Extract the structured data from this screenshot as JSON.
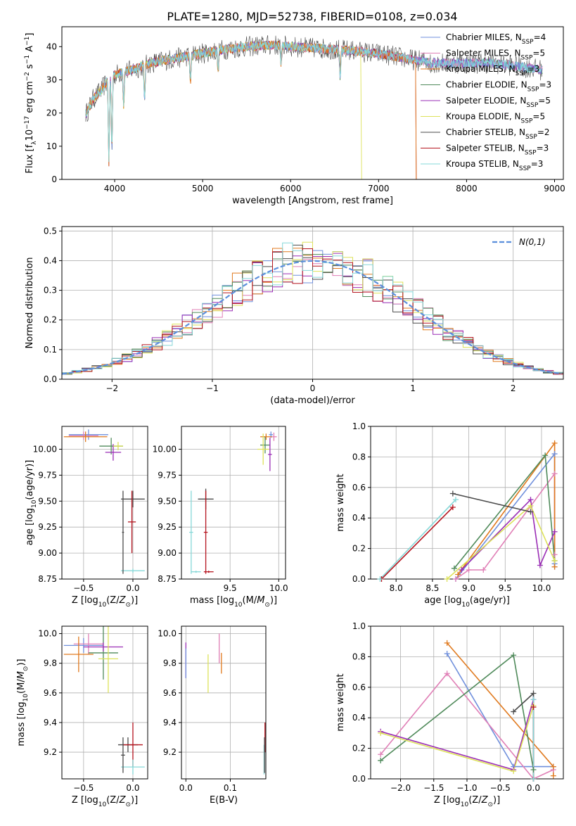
{
  "title": "PLATE=1280, MJD=52738, FIBERID=0108, z=0.034",
  "colors": {
    "chabrier_miles": "#6f8fdc",
    "salpeter_miles": "#e07fb6",
    "kroupa_miles": "#e07a1f",
    "chabrier_elodie": "#4f8a5a",
    "salpeter_elodie": "#9a2db5",
    "kroupa_elodie": "#dde25a",
    "chabrier_stelib": "#4a4a4a",
    "salpeter_stelib": "#b5151f",
    "kroupa_stelib": "#86d8d8",
    "gaussian": "#5b8fdc"
  },
  "chart_data": [
    {
      "id": "spectrum",
      "type": "line",
      "xlabel": "wavelength [Angstrom, rest frame]",
      "ylabel": "Flux [f_λ10^-17 erg cm^-2 s^-1 A^-1]",
      "xlim": [
        3400,
        9100
      ],
      "ylim": [
        0,
        46
      ],
      "xticks": [
        4000,
        5000,
        6000,
        7000,
        8000,
        9000
      ],
      "yticks": [
        0,
        10,
        20,
        30,
        40
      ],
      "grid": false,
      "legend_position": "top-right",
      "legend": [
        {
          "key": "chabrier_miles",
          "label": "Chabrier MILES, N",
          "sub": "SSP",
          "tail": "=4"
        },
        {
          "key": "salpeter_miles",
          "label": "Salpeter MILES, N",
          "sub": "SSP",
          "tail": "=5"
        },
        {
          "key": "kroupa_miles",
          "label": "Kroupa MILES, N",
          "sub": "SSP",
          "tail": "=3"
        },
        {
          "key": "chabrier_elodie",
          "label": "Chabrier ELODIE, N",
          "sub": "SSP",
          "tail": "=3"
        },
        {
          "key": "salpeter_elodie",
          "label": "Salpeter ELODIE, N",
          "sub": "SSP",
          "tail": "=5"
        },
        {
          "key": "kroupa_elodie",
          "label": "Kroupa ELODIE, N",
          "sub": "SSP",
          "tail": "=5"
        },
        {
          "key": "chabrier_stelib",
          "label": "Chabrier STELIB, N",
          "sub": "SSP",
          "tail": "=2"
        },
        {
          "key": "salpeter_stelib",
          "label": "Salpeter STELIB, N",
          "sub": "SSP",
          "tail": "=3"
        },
        {
          "key": "kroupa_stelib",
          "label": "Kroupa STELIB, N",
          "sub": "SSP",
          "tail": "=3"
        }
      ],
      "continuum": [
        [
          3680,
          20
        ],
        [
          3750,
          24
        ],
        [
          3850,
          27
        ],
        [
          3950,
          31
        ],
        [
          4050,
          32
        ],
        [
          4200,
          33
        ],
        [
          4400,
          35
        ],
        [
          4600,
          36
        ],
        [
          4800,
          37
        ],
        [
          5000,
          38
        ],
        [
          5200,
          39
        ],
        [
          5500,
          40
        ],
        [
          5800,
          40.5
        ],
        [
          6000,
          40
        ],
        [
          6300,
          39.5
        ],
        [
          6600,
          39
        ],
        [
          6800,
          38.5
        ],
        [
          7100,
          37.5
        ],
        [
          7400,
          36
        ],
        [
          7700,
          35
        ],
        [
          8000,
          35
        ],
        [
          8300,
          35
        ],
        [
          8600,
          34
        ],
        [
          8850,
          33
        ]
      ],
      "dips": [
        [
          3934,
          25
        ],
        [
          3968,
          22
        ],
        [
          4102,
          10
        ],
        [
          4340,
          10
        ],
        [
          4861,
          8
        ],
        [
          5175,
          6
        ],
        [
          5890,
          5
        ],
        [
          6563,
          8
        ],
        [
          7600,
          2
        ]
      ],
      "model_cutoffs": [
        {
          "key": "kroupa_miles",
          "end": 7420
        },
        {
          "key": "salpeter_stelib",
          "end": 7420
        },
        {
          "key": "kroupa_elodie",
          "end": 6800
        }
      ]
    },
    {
      "id": "residuals",
      "type": "histogram",
      "xlabel": "(data-model)/error",
      "ylabel": "Normed distribution",
      "xlim": [
        -2.5,
        2.5
      ],
      "ylim": [
        0,
        0.515
      ],
      "xticks": [
        -2,
        -1,
        0,
        1,
        2
      ],
      "yticks": [
        0.0,
        0.1,
        0.2,
        0.3,
        0.4,
        0.5
      ],
      "grid": true,
      "bin_width": 0.1,
      "legend_position": "top-right",
      "gaussian_label": "N(0,1)"
    },
    {
      "id": "age_vs_Z",
      "type": "scatter",
      "xlabel": "Z [log10(Z/Z⊙)]",
      "ylabel": "age [log10(age/yr)]",
      "xlim": [
        -0.72,
        0.15
      ],
      "ylim": [
        8.75,
        10.22
      ],
      "xticks": [
        -0.5,
        0.0
      ],
      "yticks": [
        8.75,
        9.0,
        9.25,
        9.5,
        9.75,
        10.0
      ],
      "grid": true,
      "points": [
        {
          "c": "chabrier_miles",
          "x": -0.45,
          "y": 10.14,
          "dx": 0.2,
          "dy": 0.05
        },
        {
          "c": "salpeter_miles",
          "x": -0.5,
          "y": 10.13,
          "dx": 0.15,
          "dy": 0.04
        },
        {
          "c": "kroupa_miles",
          "x": -0.48,
          "y": 10.12,
          "dx": 0.22,
          "dy": 0.05
        },
        {
          "c": "chabrier_elodie",
          "x": -0.22,
          "y": 10.03,
          "dx": 0.12,
          "dy": 0.08
        },
        {
          "c": "salpeter_elodie",
          "x": -0.2,
          "y": 9.97,
          "dx": 0.08,
          "dy": 0.08
        },
        {
          "c": "kroupa_elodie",
          "x": -0.15,
          "y": 10.03,
          "dx": 0.05,
          "dy": 0.04
        },
        {
          "c": "chabrier_stelib",
          "x": 0.0,
          "y": 9.52,
          "dx": 0.12,
          "dy": 0.08
        },
        {
          "c": "salpeter_stelib",
          "x": -0.01,
          "y": 9.3,
          "dx": 0.04,
          "dy": 0.3
        },
        {
          "c": "kroupa_stelib",
          "x": 0.0,
          "y": 8.83,
          "dx": 0.12,
          "dy": 0.02
        },
        {
          "c": "chabrier_stelib",
          "x": -0.1,
          "y": 9.2,
          "dx": 0.01,
          "dy": 0.4
        }
      ]
    },
    {
      "id": "age_vs_mass",
      "type": "scatter",
      "xlabel": "mass [log10(M/M⊙)]",
      "ylabel": "",
      "xlim": [
        9.0,
        10.07
      ],
      "ylim": [
        8.75,
        10.22
      ],
      "xticks": [
        9.5,
        10.0
      ],
      "yticks": [
        8.75,
        9.0,
        9.25,
        9.5,
        9.75,
        10.0
      ],
      "grid": true,
      "points": [
        {
          "c": "chabrier_miles",
          "x": 9.92,
          "y": 10.14,
          "dx": 0.02,
          "dy": 0.03
        },
        {
          "c": "salpeter_miles",
          "x": 9.95,
          "y": 10.12,
          "dx": 0.03,
          "dy": 0.04
        },
        {
          "c": "kroupa_miles",
          "x": 9.87,
          "y": 10.12,
          "dx": 0.06,
          "dy": 0.03
        },
        {
          "c": "chabrier_elodie",
          "x": 9.86,
          "y": 10.04,
          "dx": 0.05,
          "dy": 0.08
        },
        {
          "c": "salpeter_elodie",
          "x": 9.91,
          "y": 9.95,
          "dx": 0.02,
          "dy": 0.16
        },
        {
          "c": "kroupa_elodie",
          "x": 9.84,
          "y": 10.0,
          "dx": 0.06,
          "dy": 0.15
        },
        {
          "c": "chabrier_stelib",
          "x": 9.25,
          "y": 9.52,
          "dx": 0.08,
          "dy": 0.1
        },
        {
          "c": "salpeter_stelib",
          "x": 9.25,
          "y": 9.2,
          "dx": 0.02,
          "dy": 0.4
        },
        {
          "c": "kroupa_stelib",
          "x": 9.1,
          "y": 9.2,
          "dx": 0.02,
          "dy": 0.4
        },
        {
          "c": "kroupa_stelib",
          "x": 9.15,
          "y": 8.82,
          "dx": 0.05,
          "dy": 0.01
        },
        {
          "c": "salpeter_stelib",
          "x": 9.28,
          "y": 8.82,
          "dx": 0.05,
          "dy": 0.01
        }
      ]
    },
    {
      "id": "weight_vs_age",
      "type": "line",
      "xlabel": "age [log10(age/yr)]",
      "ylabel": "mass weight",
      "xlim": [
        7.65,
        10.3
      ],
      "ylim": [
        0,
        1.0
      ],
      "xticks": [
        8.0,
        8.5,
        9.0,
        9.5,
        10.0
      ],
      "yticks": [
        0.0,
        0.2,
        0.4,
        0.6,
        0.8,
        1.0
      ],
      "grid": true,
      "series": [
        {
          "c": "chabrier_miles",
          "points": [
            [
              8.82,
              0.0
            ],
            [
              10.18,
              0.82
            ],
            [
              10.18,
              0.1
            ],
            [
              10.18,
              0.08
            ]
          ]
        },
        {
          "c": "salpeter_miles",
          "points": [
            [
              8.82,
              0.0
            ],
            [
              9.0,
              0.06
            ],
            [
              9.2,
              0.06
            ],
            [
              10.18,
              0.69
            ],
            [
              10.18,
              0.16
            ]
          ]
        },
        {
          "c": "kroupa_miles",
          "points": [
            [
              8.85,
              0.03
            ],
            [
              10.18,
              0.89
            ],
            [
              10.18,
              0.08
            ]
          ]
        },
        {
          "c": "chabrier_elodie",
          "points": [
            [
              8.8,
              0.07
            ],
            [
              10.05,
              0.81
            ],
            [
              10.18,
              0.12
            ]
          ]
        },
        {
          "c": "salpeter_elodie",
          "points": [
            [
              8.9,
              0.06
            ],
            [
              9.85,
              0.52
            ],
            [
              9.98,
              0.09
            ],
            [
              10.18,
              0.31
            ]
          ]
        },
        {
          "c": "kroupa_elodie",
          "points": [
            [
              8.7,
              0.0
            ],
            [
              9.85,
              0.48
            ],
            [
              10.18,
              0.12
            ]
          ]
        },
        {
          "c": "chabrier_stelib",
          "points": [
            [
              8.78,
              0.56
            ],
            [
              9.85,
              0.44
            ]
          ]
        },
        {
          "c": "salpeter_stelib",
          "points": [
            [
              7.8,
              0.0
            ],
            [
              8.78,
              0.47
            ]
          ]
        },
        {
          "c": "kroupa_stelib",
          "points": [
            [
              7.78,
              0.0
            ],
            [
              8.82,
              0.52
            ]
          ]
        }
      ]
    },
    {
      "id": "mass_vs_Z",
      "type": "scatter",
      "xlabel": "Z [log10(Z/Z⊙)]",
      "ylabel": "mass [log10(M/M⊙)]",
      "xlim": [
        -0.72,
        0.15
      ],
      "ylim": [
        9.02,
        10.05
      ],
      "xticks": [
        -0.5,
        0.0
      ],
      "yticks": [
        9.2,
        9.4,
        9.6,
        9.8,
        10.0
      ],
      "grid": true,
      "points": [
        {
          "c": "chabrier_miles",
          "x": -0.5,
          "y": 9.92,
          "dx": 0.2,
          "dy": 0.05
        },
        {
          "c": "salpeter_miles",
          "x": -0.45,
          "y": 9.93,
          "dx": 0.15,
          "dy": 0.07
        },
        {
          "c": "kroupa_miles",
          "x": -0.55,
          "y": 9.86,
          "dx": 0.15,
          "dy": 0.12
        },
        {
          "c": "chabrier_elodie",
          "x": -0.3,
          "y": 9.87,
          "dx": 0.15,
          "dy": 0.18
        },
        {
          "c": "salpeter_elodie",
          "x": -0.3,
          "y": 9.91,
          "dx": 0.2,
          "dy": 0.03
        },
        {
          "c": "kroupa_elodie",
          "x": -0.25,
          "y": 9.83,
          "dx": 0.1,
          "dy": 0.23
        },
        {
          "c": "chabrier_stelib",
          "x": -0.05,
          "y": 9.25,
          "dx": 0.1,
          "dy": 0.05
        },
        {
          "c": "salpeter_stelib",
          "x": 0.0,
          "y": 9.25,
          "dx": 0.1,
          "dy": 0.15
        },
        {
          "c": "kroupa_stelib",
          "x": 0.0,
          "y": 9.1,
          "dx": 0.12,
          "dy": 0.05
        },
        {
          "c": "chabrier_stelib",
          "x": -0.1,
          "y": 9.18,
          "dx": 0.02,
          "dy": 0.12
        }
      ]
    },
    {
      "id": "mass_vs_ebv",
      "type": "scatter",
      "xlabel": "E(B-V)",
      "ylabel": "",
      "xlim": [
        -0.01,
        0.18
      ],
      "ylim": [
        9.02,
        10.05
      ],
      "xticks": [
        0.0,
        0.1
      ],
      "yticks": [
        9.2,
        9.4,
        9.6,
        9.8,
        10.0
      ],
      "grid": true,
      "points": [
        {
          "c": "salpeter_elodie",
          "x": 0.0,
          "y": 9.82,
          "dx": 0.0,
          "dy": 0.12
        },
        {
          "c": "chabrier_miles",
          "x": 0.0,
          "y": 9.8,
          "dx": 0.0,
          "dy": 0.1
        },
        {
          "c": "kroupa_elodie",
          "x": 0.05,
          "y": 9.73,
          "dx": 0.0,
          "dy": 0.13
        },
        {
          "c": "salpeter_miles",
          "x": 0.075,
          "y": 9.9,
          "dx": 0.0,
          "dy": 0.1
        },
        {
          "c": "kroupa_miles",
          "x": 0.08,
          "y": 9.8,
          "dx": 0.0,
          "dy": 0.07
        },
        {
          "c": "salpeter_stelib",
          "x": 0.178,
          "y": 9.3,
          "dx": 0.0,
          "dy": 0.1
        },
        {
          "c": "kroupa_stelib",
          "x": 0.176,
          "y": 9.15,
          "dx": 0.0,
          "dy": 0.1
        },
        {
          "c": "chabrier_stelib",
          "x": 0.177,
          "y": 9.18,
          "dx": 0.0,
          "dy": 0.12
        }
      ]
    },
    {
      "id": "weight_vs_Z",
      "type": "line",
      "xlabel": "Z [log10(Z/Z⊙)]",
      "ylabel": "mass weight",
      "xlim": [
        -2.45,
        0.45
      ],
      "ylim": [
        0,
        1.0
      ],
      "xticks": [
        -2.0,
        -1.5,
        -1.0,
        -0.5,
        0.0
      ],
      "yticks": [
        0.0,
        0.2,
        0.4,
        0.6,
        0.8,
        1.0
      ],
      "grid": true,
      "series": [
        {
          "c": "chabrier_miles",
          "points": [
            [
              -1.3,
              0.82
            ],
            [
              -0.3,
              0.08
            ],
            [
              0.3,
              0.08
            ]
          ]
        },
        {
          "c": "salpeter_miles",
          "points": [
            [
              -2.3,
              0.16
            ],
            [
              -1.3,
              0.69
            ],
            [
              0.0,
              0.0
            ],
            [
              0.3,
              0.06
            ]
          ]
        },
        {
          "c": "kroupa_miles",
          "points": [
            [
              -1.3,
              0.89
            ],
            [
              0.3,
              0.08
            ],
            [
              0.3,
              0.02
            ]
          ]
        },
        {
          "c": "chabrier_elodie",
          "points": [
            [
              -2.3,
              0.12
            ],
            [
              -0.3,
              0.81
            ],
            [
              0.0,
              0.06
            ]
          ]
        },
        {
          "c": "salpeter_elodie",
          "points": [
            [
              -2.3,
              0.31
            ],
            [
              -0.3,
              0.06
            ],
            [
              0.0,
              0.52
            ]
          ]
        },
        {
          "c": "kroupa_elodie",
          "points": [
            [
              -2.3,
              0.3
            ],
            [
              -0.3,
              0.05
            ],
            [
              0.0,
              0.48
            ]
          ]
        },
        {
          "c": "chabrier_stelib",
          "points": [
            [
              -0.3,
              0.44
            ],
            [
              0.0,
              0.56
            ],
            [
              0.0,
              0.0
            ]
          ]
        },
        {
          "c": "salpeter_stelib",
          "points": [
            [
              0.0,
              0.47
            ],
            [
              0.0,
              0.0
            ]
          ]
        },
        {
          "c": "kroupa_stelib",
          "points": [
            [
              0.0,
              0.52
            ],
            [
              0.0,
              0.0
            ]
          ]
        }
      ]
    }
  ]
}
